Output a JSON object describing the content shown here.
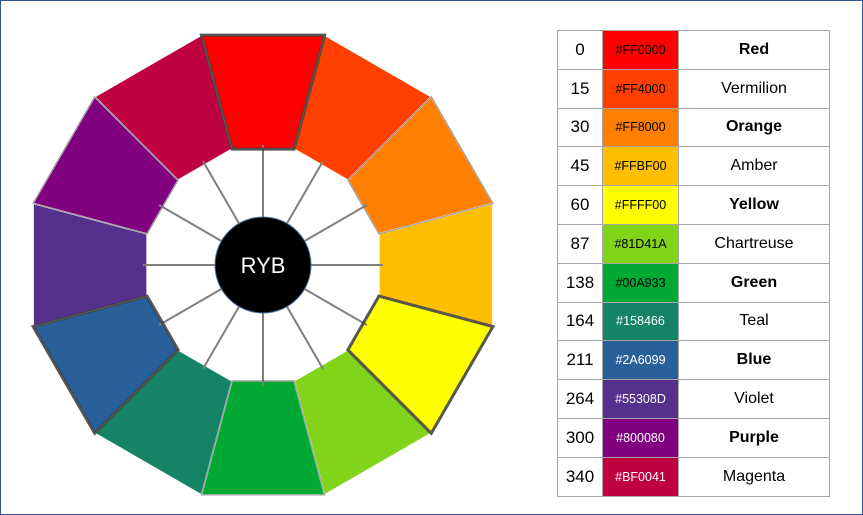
{
  "wheel": {
    "center_label": "RYB",
    "segments": [
      {
        "name": "Red",
        "color": "#FF0000"
      },
      {
        "name": "Vermilion",
        "color": "#FF4000"
      },
      {
        "name": "Orange",
        "color": "#FF8000"
      },
      {
        "name": "Amber",
        "color": "#FFBF00"
      },
      {
        "name": "Yellow",
        "color": "#FFFF00"
      },
      {
        "name": "Chartreuse",
        "color": "#81D41A"
      },
      {
        "name": "Green",
        "color": "#00A933"
      },
      {
        "name": "Teal",
        "color": "#158466"
      },
      {
        "name": "Blue",
        "color": "#2A6099"
      },
      {
        "name": "Violet",
        "color": "#55308D"
      },
      {
        "name": "Purple",
        "color": "#800080"
      },
      {
        "name": "Magenta",
        "color": "#BF0041"
      }
    ],
    "primary_segments": [
      "Red",
      "Yellow",
      "Blue"
    ],
    "secondary_segments": [
      "Orange",
      "Green",
      "Purple"
    ]
  },
  "table": {
    "rows": [
      {
        "hue": "0",
        "hex": "#FF0000",
        "name": "Red",
        "bold": true,
        "color": "#FF0000"
      },
      {
        "hue": "15",
        "hex": "#FF4000",
        "name": "Vermilion",
        "bold": false,
        "color": "#FF4000"
      },
      {
        "hue": "30",
        "hex": "#FF8000",
        "name": "Orange",
        "bold": true,
        "color": "#FF8000"
      },
      {
        "hue": "45",
        "hex": "#FFBF00",
        "name": "Amber",
        "bold": false,
        "color": "#FFBF00"
      },
      {
        "hue": "60",
        "hex": "#FFFF00",
        "name": "Yellow",
        "bold": true,
        "color": "#FFFF00"
      },
      {
        "hue": "87",
        "hex": "#81D41A",
        "name": "Chartreuse",
        "bold": false,
        "color": "#81D41A"
      },
      {
        "hue": "138",
        "hex": "#00A933",
        "name": "Green",
        "bold": true,
        "color": "#00A933"
      },
      {
        "hue": "164",
        "hex": "#158466",
        "name": "Teal",
        "bold": false,
        "color": "#158466"
      },
      {
        "hue": "211",
        "hex": "#2A6099",
        "name": "Blue",
        "bold": true,
        "color": "#2A6099"
      },
      {
        "hue": "264",
        "hex": "#55308D",
        "name": "Violet",
        "bold": false,
        "color": "#55308D"
      },
      {
        "hue": "300",
        "hex": "#800080",
        "name": "Purple",
        "bold": true,
        "color": "#800080"
      },
      {
        "hue": "340",
        "hex": "#BF0041",
        "name": "Magenta",
        "bold": false,
        "color": "#BF0041"
      }
    ]
  }
}
